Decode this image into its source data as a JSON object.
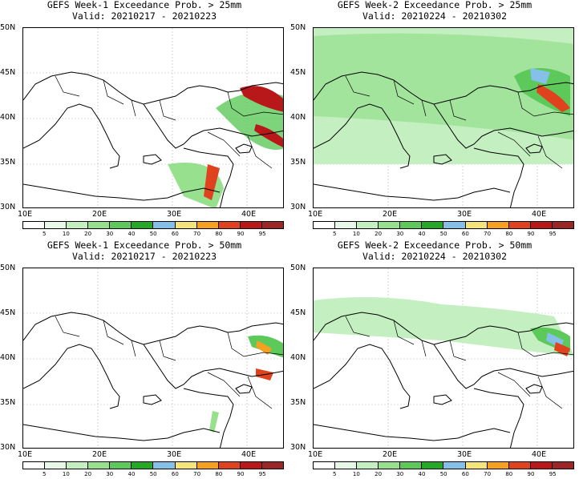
{
  "panels": [
    {
      "title": "GEFS Week-1 Exceedance Prob. > 25mm",
      "valid": "Valid: 20210217 - 20210223"
    },
    {
      "title": "GEFS Week-2 Exceedance Prob. > 25mm",
      "valid": "Valid: 20210224 - 20210302"
    },
    {
      "title": "GEFS Week-1 Exceedance Prob. > 50mm",
      "valid": "Valid: 20210217 - 20210223"
    },
    {
      "title": "GEFS Week-2 Exceedance Prob. > 50mm",
      "valid": "Valid: 20210224 - 20210302"
    }
  ],
  "lat_labels": [
    "50N",
    "45N",
    "40N",
    "35N",
    "30N"
  ],
  "lon_labels": [
    "10E",
    "20E",
    "30E",
    "40E"
  ],
  "colorbar": {
    "labels": [
      "5",
      "10",
      "20",
      "30",
      "40",
      "50",
      "60",
      "70",
      "80",
      "90",
      "95"
    ],
    "colors": [
      "#ffffff",
      "#e8f8e8",
      "#c4efc0",
      "#96e08e",
      "#5cc95a",
      "#25a825",
      "#84c0e8",
      "#f5e47a",
      "#f5a020",
      "#e0421e",
      "#b8181a",
      "#9c2626"
    ]
  }
}
